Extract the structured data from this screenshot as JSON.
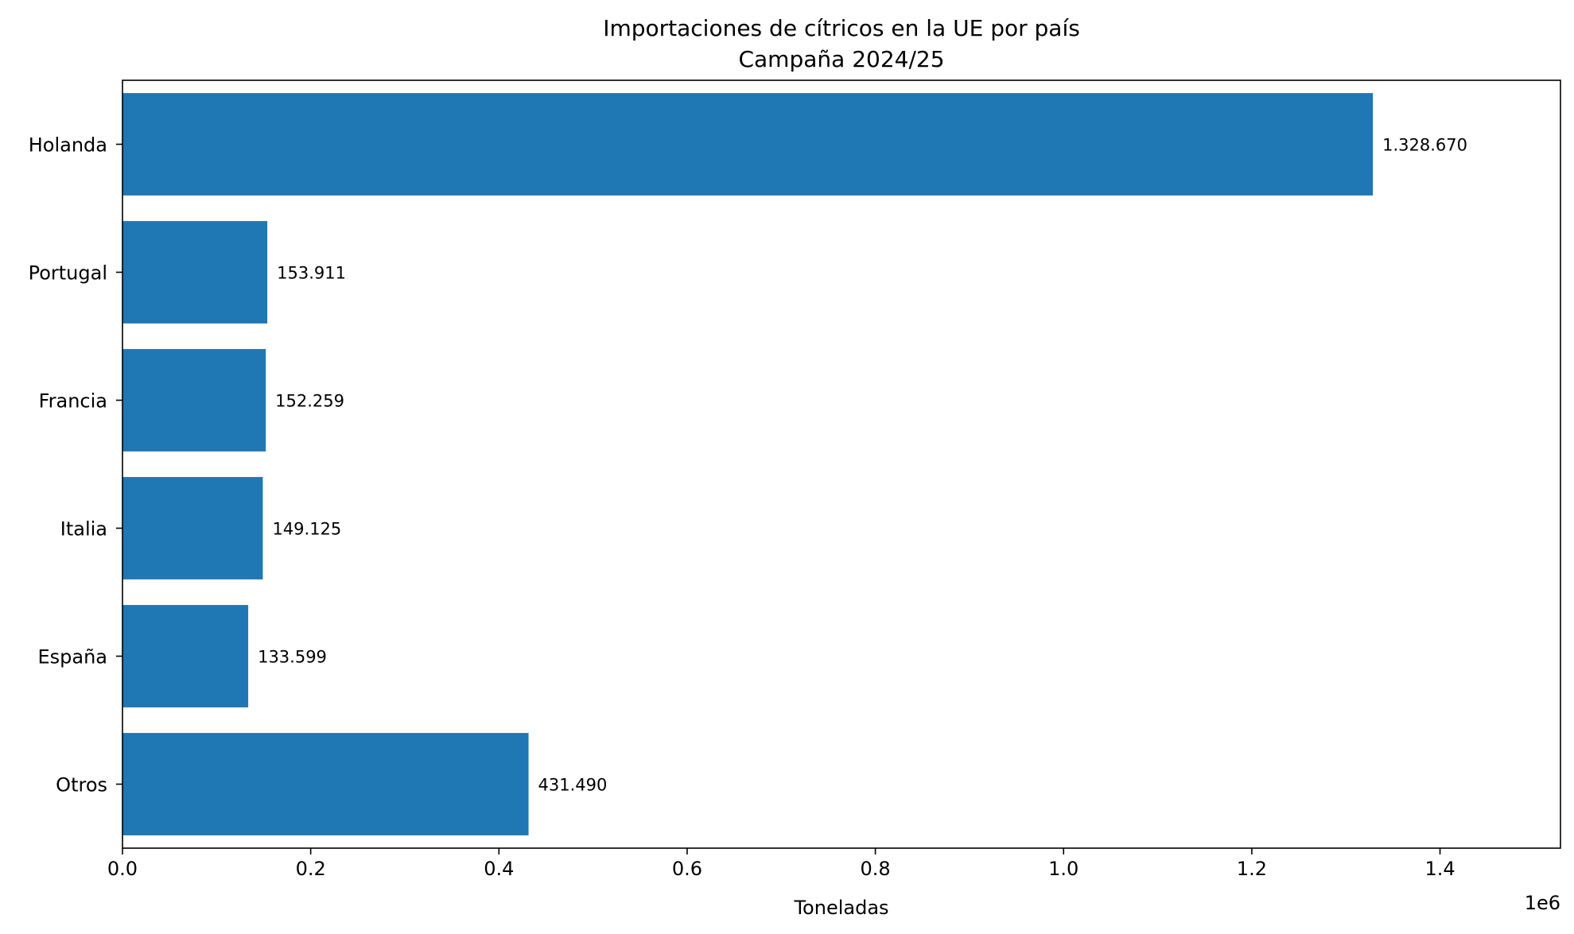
{
  "chart_data": {
    "type": "bar",
    "orientation": "horizontal",
    "title": "Importaciones de cítricos en la UE por país",
    "subtitle": "Campaña 2024/25",
    "xlabel": "Toneladas",
    "ylabel": "",
    "x_offset_label": "1e6",
    "categories": [
      "Holanda",
      "Portugal",
      "Francia",
      "Italia",
      "España",
      "Otros"
    ],
    "values": [
      1328670,
      153911,
      152259,
      149125,
      133599,
      431490
    ],
    "value_labels": [
      "1.328.670",
      "153.911",
      "152.259",
      "149.125",
      "133.599",
      "431.490"
    ],
    "xlim": [
      0,
      1528000
    ],
    "x_ticks": [
      0,
      0.2,
      0.4,
      0.6,
      0.8,
      1.0,
      1.2,
      1.4
    ],
    "x_tick_labels": [
      "0.0",
      "0.2",
      "0.4",
      "0.6",
      "0.8",
      "1.0",
      "1.2",
      "1.4"
    ],
    "x_tick_multiplier": 1000000,
    "bar_color": "#1f77b4",
    "grid": false,
    "legend": "none"
  }
}
